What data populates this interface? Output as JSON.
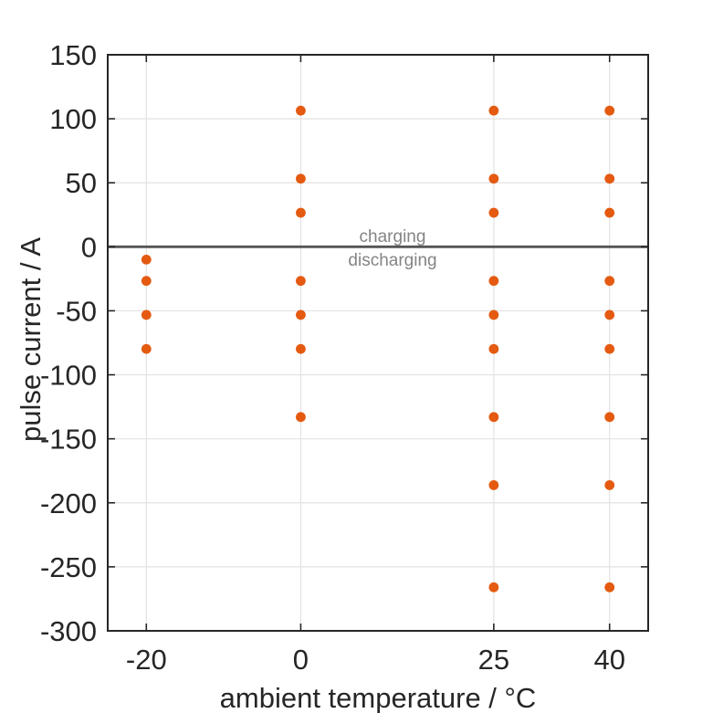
{
  "figure": {
    "background": "#ffffff"
  },
  "chart_data": {
    "type": "scatter",
    "title": "",
    "xlabel": "ambient temperature / °C",
    "ylabel": "pulse current / A",
    "xlim": [
      -25,
      45
    ],
    "ylim": [
      -300,
      150
    ],
    "xticks": [
      -20,
      0,
      25,
      40
    ],
    "yticks": [
      150,
      100,
      50,
      0,
      -50,
      -100,
      -150,
      -200,
      -250,
      -300
    ],
    "grid": true,
    "legend": "none",
    "zero_line": {
      "value": 0,
      "label_above": "charging",
      "label_below": "discharging"
    },
    "series": [
      {
        "name": "pulse-test-operating-points",
        "marker": "filled-circle",
        "color": "#E45A10",
        "points": [
          [
            -20,
            -10
          ],
          [
            -20,
            -26.6
          ],
          [
            -20,
            -53.2
          ],
          [
            -20,
            -79.8
          ],
          [
            0,
            106.4
          ],
          [
            0,
            53.2
          ],
          [
            0,
            26.6
          ],
          [
            0,
            -26.6
          ],
          [
            0,
            -53.2
          ],
          [
            0,
            -79.8
          ],
          [
            0,
            -133
          ],
          [
            25,
            106.4
          ],
          [
            25,
            53.2
          ],
          [
            25,
            26.6
          ],
          [
            25,
            -26.6
          ],
          [
            25,
            -53.2
          ],
          [
            25,
            -79.8
          ],
          [
            25,
            -133
          ],
          [
            25,
            -186.2
          ],
          [
            25,
            -266
          ],
          [
            40,
            106.4
          ],
          [
            40,
            53.2
          ],
          [
            40,
            26.6
          ],
          [
            40,
            -26.6
          ],
          [
            40,
            -53.2
          ],
          [
            40,
            -79.8
          ],
          [
            40,
            -133
          ],
          [
            40,
            -186.2
          ],
          [
            40,
            -266
          ]
        ]
      }
    ],
    "colors": {
      "marker": "#E45A10",
      "grid": "#E2E2E2",
      "axis": "#262626",
      "tick_text": "#262626",
      "zero_line": "#555555",
      "zone_text": "#848484",
      "background": "#ffffff"
    }
  }
}
